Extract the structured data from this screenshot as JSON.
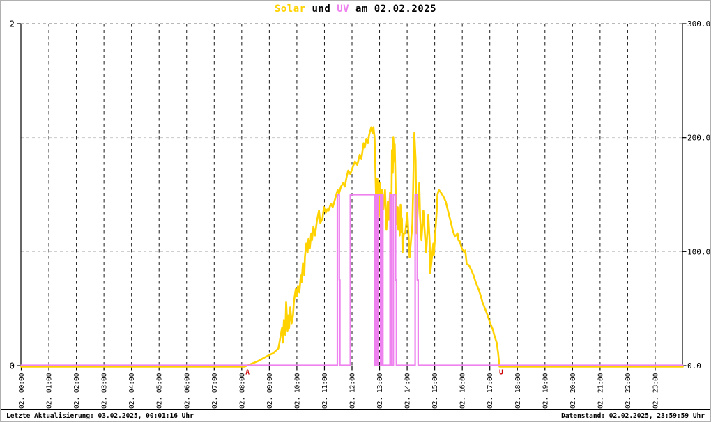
{
  "title": {
    "solar": "Solar",
    "und": " und ",
    "uv": "UV",
    "date": " am 02.02.2025"
  },
  "footer": {
    "left": "Letzte Aktualisierung: 03.02.2025, 00:01:16 Uhr",
    "right": "Datenstand: 02.02.2025, 23:59:59 Uhr"
  },
  "colors": {
    "solar": "#ffd200",
    "uv": "#ee82ee",
    "axis": "#000000",
    "grid_vertical": "#1a1a1a",
    "grid_light": "#c9c9c9",
    "grid_top": "#707070",
    "marker": "#cc0000",
    "background": "#ffffff"
  },
  "markers": {
    "sunrise": {
      "label": "A",
      "t": 8.21
    },
    "sunset": {
      "label": "U",
      "t": 17.41
    }
  },
  "chart_data": {
    "type": "line",
    "title": "Solar und UV am 02.02.2025",
    "x_axis": {
      "unit": "hour",
      "range": [
        0,
        24
      ],
      "tick_interval_hours": 1,
      "tick_labels": [
        "02. 00:00",
        "02. 01:00",
        "02. 02:00",
        "02. 03:00",
        "02. 04:00",
        "02. 05:00",
        "02. 06:00",
        "02. 07:00",
        "02. 08:00",
        "02. 09:00",
        "02. 10:00",
        "02. 11:00",
        "02. 12:00",
        "02. 13:00",
        "02. 14:00",
        "02. 15:00",
        "02. 16:00",
        "02. 17:00",
        "02. 18:00",
        "02. 19:00",
        "02. 20:00",
        "02. 21:00",
        "02. 22:00",
        "02. 23:00"
      ]
    },
    "y_left": {
      "range": [
        0,
        2
      ],
      "ticks": [
        {
          "v": 2,
          "label": "2"
        },
        {
          "v": 0,
          "label": "0"
        }
      ]
    },
    "y_right": {
      "range": [
        0,
        300
      ],
      "ticks": [
        {
          "v": 0,
          "label": "0.0"
        },
        {
          "v": 100,
          "label": "100.0"
        },
        {
          "v": 200,
          "label": "200.0"
        },
        {
          "v": 300,
          "label": "300.0"
        }
      ],
      "gridlines": [
        100,
        200,
        300
      ]
    },
    "series": [
      {
        "name": "Solar",
        "axis": "right",
        "color_key": "solar",
        "points": [
          [
            0,
            0
          ],
          [
            8.1,
            0
          ],
          [
            8.3,
            2
          ],
          [
            8.6,
            5
          ],
          [
            8.9,
            9
          ],
          [
            9.15,
            12
          ],
          [
            9.33,
            16
          ],
          [
            9.41,
            27
          ],
          [
            9.46,
            34
          ],
          [
            9.49,
            21
          ],
          [
            9.53,
            41
          ],
          [
            9.58,
            28
          ],
          [
            9.61,
            57
          ],
          [
            9.66,
            31
          ],
          [
            9.69,
            45
          ],
          [
            9.72,
            34
          ],
          [
            9.76,
            52
          ],
          [
            9.81,
            38
          ],
          [
            9.86,
            45
          ],
          [
            9.89,
            57
          ],
          [
            9.96,
            68
          ],
          [
            10.0,
            62
          ],
          [
            10.04,
            71
          ],
          [
            10.09,
            65
          ],
          [
            10.14,
            80
          ],
          [
            10.17,
            74
          ],
          [
            10.22,
            91
          ],
          [
            10.27,
            80
          ],
          [
            10.29,
            96
          ],
          [
            10.34,
            108
          ],
          [
            10.39,
            100
          ],
          [
            10.42,
            112
          ],
          [
            10.47,
            104
          ],
          [
            10.52,
            117
          ],
          [
            10.55,
            111
          ],
          [
            10.6,
            123
          ],
          [
            10.66,
            115
          ],
          [
            10.72,
            127
          ],
          [
            10.8,
            137
          ],
          [
            10.85,
            126
          ],
          [
            10.93,
            130
          ],
          [
            10.98,
            140
          ],
          [
            11.05,
            135
          ],
          [
            11.1,
            138
          ],
          [
            11.15,
            137
          ],
          [
            11.23,
            143
          ],
          [
            11.3,
            140
          ],
          [
            11.35,
            144
          ],
          [
            11.43,
            151
          ],
          [
            11.48,
            155
          ],
          [
            11.53,
            152
          ],
          [
            11.6,
            158
          ],
          [
            11.68,
            161
          ],
          [
            11.74,
            158
          ],
          [
            11.8,
            166
          ],
          [
            11.86,
            172
          ],
          [
            11.94,
            169
          ],
          [
            12.04,
            176
          ],
          [
            12.11,
            180
          ],
          [
            12.19,
            177
          ],
          [
            12.28,
            186
          ],
          [
            12.34,
            182
          ],
          [
            12.42,
            196
          ],
          [
            12.46,
            192
          ],
          [
            12.52,
            200
          ],
          [
            12.58,
            196
          ],
          [
            12.62,
            203
          ],
          [
            12.66,
            207
          ],
          [
            12.7,
            210
          ],
          [
            12.74,
            205
          ],
          [
            12.78,
            210
          ],
          [
            12.82,
            201
          ],
          [
            12.86,
            160
          ],
          [
            12.9,
            123
          ],
          [
            12.92,
            165
          ],
          [
            12.97,
            131
          ],
          [
            13.02,
            161
          ],
          [
            13.05,
            125
          ],
          [
            13.09,
            155
          ],
          [
            13.14,
            138
          ],
          [
            13.2,
            155
          ],
          [
            13.25,
            120
          ],
          [
            13.3,
            145
          ],
          [
            13.33,
            129
          ],
          [
            13.38,
            153
          ],
          [
            13.43,
            133
          ],
          [
            13.45,
            190
          ],
          [
            13.48,
            170
          ],
          [
            13.5,
            201
          ],
          [
            13.53,
            180
          ],
          [
            13.55,
            195
          ],
          [
            13.58,
            160
          ],
          [
            13.6,
            130
          ],
          [
            13.63,
            125
          ],
          [
            13.66,
            140
          ],
          [
            13.68,
            120
          ],
          [
            13.71,
            135
          ],
          [
            13.73,
            115
          ],
          [
            13.76,
            142
          ],
          [
            13.78,
            118
          ],
          [
            13.81,
            130
          ],
          [
            13.83,
            100
          ],
          [
            13.88,
            117
          ],
          [
            13.93,
            117
          ],
          [
            14.01,
            135
          ],
          [
            14.09,
            96
          ],
          [
            14.19,
            125
          ],
          [
            14.26,
            205
          ],
          [
            14.31,
            181
          ],
          [
            14.34,
            117
          ],
          [
            14.44,
            161
          ],
          [
            14.47,
            131
          ],
          [
            14.52,
            111
          ],
          [
            14.59,
            137
          ],
          [
            14.64,
            117
          ],
          [
            14.69,
            100
          ],
          [
            14.77,
            133
          ],
          [
            14.82,
            108
          ],
          [
            14.84,
            82
          ],
          [
            14.95,
            108
          ],
          [
            14.97,
            98
          ],
          [
            15.02,
            117
          ],
          [
            15.07,
            135
          ],
          [
            15.1,
            151
          ],
          [
            15.15,
            155
          ],
          [
            15.22,
            153
          ],
          [
            15.32,
            149
          ],
          [
            15.4,
            145
          ],
          [
            15.48,
            137
          ],
          [
            15.58,
            127
          ],
          [
            15.65,
            120
          ],
          [
            15.73,
            114
          ],
          [
            15.83,
            117
          ],
          [
            15.86,
            111
          ],
          [
            15.91,
            110
          ],
          [
            15.98,
            104
          ],
          [
            16.08,
            100
          ],
          [
            16.11,
            102
          ],
          [
            16.16,
            90
          ],
          [
            16.24,
            89
          ],
          [
            16.34,
            84
          ],
          [
            16.41,
            80
          ],
          [
            16.49,
            74
          ],
          [
            16.59,
            68
          ],
          [
            16.67,
            62
          ],
          [
            16.74,
            56
          ],
          [
            16.84,
            50
          ],
          [
            16.92,
            45
          ],
          [
            17.0,
            39
          ],
          [
            17.1,
            33
          ],
          [
            17.17,
            27
          ],
          [
            17.25,
            21
          ],
          [
            17.3,
            12
          ],
          [
            17.35,
            0
          ],
          [
            24,
            0
          ]
        ]
      },
      {
        "name": "UV",
        "axis": "left",
        "color_key": "uv",
        "points": [
          [
            0,
            0
          ],
          [
            11.47,
            0
          ],
          [
            11.47,
            1
          ],
          [
            11.54,
            1
          ],
          [
            11.54,
            0.5
          ],
          [
            11.56,
            0.5
          ],
          [
            11.56,
            0
          ],
          [
            11.94,
            0
          ],
          [
            11.94,
            1
          ],
          [
            12.82,
            1
          ],
          [
            12.82,
            0
          ],
          [
            12.86,
            0
          ],
          [
            12.86,
            1
          ],
          [
            12.9,
            1
          ],
          [
            12.9,
            0
          ],
          [
            12.94,
            0
          ],
          [
            12.94,
            1
          ],
          [
            13.04,
            1
          ],
          [
            13.04,
            0
          ],
          [
            13.07,
            0
          ],
          [
            13.07,
            1
          ],
          [
            13.12,
            1
          ],
          [
            13.12,
            0
          ],
          [
            13.38,
            0
          ],
          [
            13.38,
            1
          ],
          [
            13.43,
            1
          ],
          [
            13.43,
            0
          ],
          [
            13.5,
            0
          ],
          [
            13.5,
            1
          ],
          [
            13.58,
            1
          ],
          [
            13.58,
            0.5
          ],
          [
            13.61,
            0.5
          ],
          [
            13.61,
            0
          ],
          [
            14.29,
            0
          ],
          [
            14.29,
            1
          ],
          [
            14.37,
            1
          ],
          [
            14.37,
            0.5
          ],
          [
            14.4,
            0.5
          ],
          [
            14.4,
            0
          ],
          [
            24,
            0
          ]
        ]
      }
    ]
  }
}
